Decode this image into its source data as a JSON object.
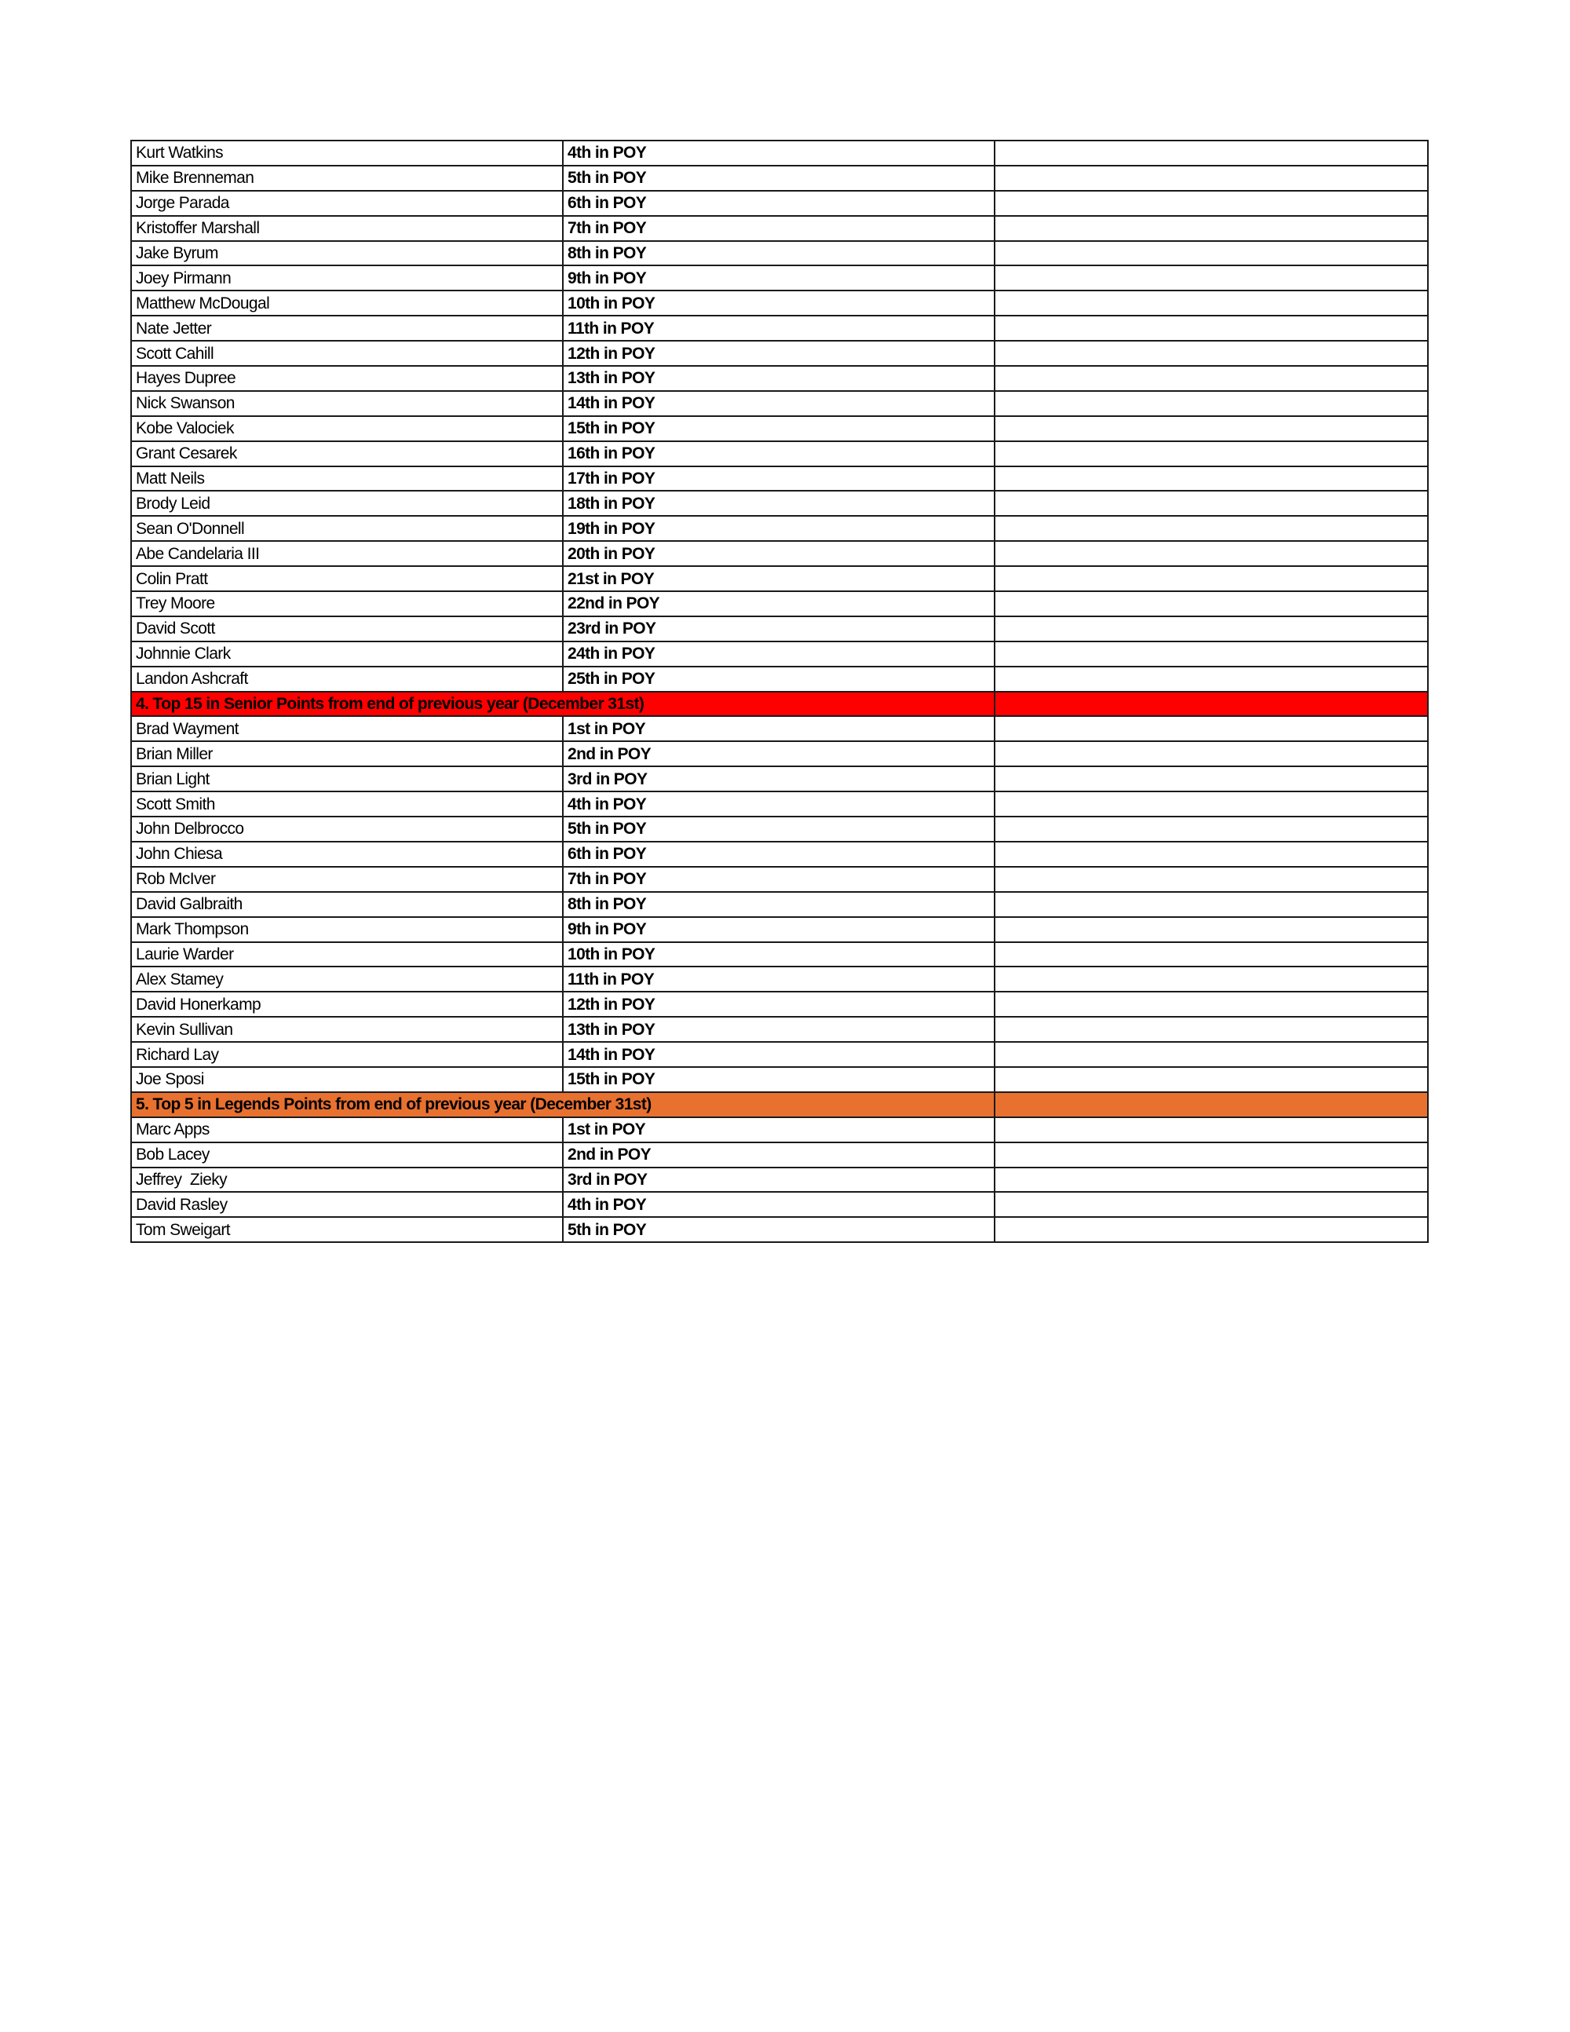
{
  "colors": {
    "section_4": "#ff0000",
    "section_5": "#e87130"
  },
  "rows": [
    {
      "name": "Kurt Watkins",
      "rank": "4th in POY"
    },
    {
      "name": "Mike Brenneman",
      "rank": "5th in POY"
    },
    {
      "name": "Jorge Parada",
      "rank": "6th in POY"
    },
    {
      "name": "Kristoffer Marshall",
      "rank": "7th in POY"
    },
    {
      "name": "Jake Byrum",
      "rank": "8th in POY"
    },
    {
      "name": "Joey Pirmann",
      "rank": "9th in POY"
    },
    {
      "name": "Matthew McDougal",
      "rank": "10th in POY"
    },
    {
      "name": "Nate Jetter",
      "rank": "11th in POY"
    },
    {
      "name": "Scott Cahill",
      "rank": "12th in POY"
    },
    {
      "name": "Hayes Dupree",
      "rank": "13th in POY"
    },
    {
      "name": "Nick Swanson",
      "rank": "14th in POY"
    },
    {
      "name": "Kobe Valociek",
      "rank": "15th in POY"
    },
    {
      "name": "Grant Cesarek",
      "rank": "16th in POY"
    },
    {
      "name": "Matt Neils",
      "rank": "17th in POY"
    },
    {
      "name": "Brody Leid",
      "rank": "18th in POY"
    },
    {
      "name": "Sean O'Donnell",
      "rank": "19th in POY"
    },
    {
      "name": "Abe Candelaria III",
      "rank": "20th in POY"
    },
    {
      "name": "Colin Pratt",
      "rank": "21st in POY"
    },
    {
      "name": "Trey Moore",
      "rank": "22nd in POY"
    },
    {
      "name": "David Scott",
      "rank": "23rd in POY"
    },
    {
      "name": "Johnnie Clark",
      "rank": "24th in POY"
    },
    {
      "name": "Landon Ashcraft",
      "rank": "25th in POY"
    },
    {
      "section": "4. Top 15 in Senior Points from end of previous year (December 31st)",
      "color": "#ff0000"
    },
    {
      "name": "Brad Wayment",
      "rank": "1st in POY"
    },
    {
      "name": "Brian Miller",
      "rank": "2nd in POY"
    },
    {
      "name": "Brian Light",
      "rank": "3rd in POY"
    },
    {
      "name": "Scott Smith",
      "rank": "4th in POY"
    },
    {
      "name": "John Delbrocco",
      "rank": "5th in POY"
    },
    {
      "name": "John Chiesa",
      "rank": "6th in POY"
    },
    {
      "name": "Rob McIver",
      "rank": "7th in POY"
    },
    {
      "name": "David Galbraith",
      "rank": "8th in POY"
    },
    {
      "name": "Mark Thompson",
      "rank": "9th in POY"
    },
    {
      "name": "Laurie Warder",
      "rank": "10th in POY"
    },
    {
      "name": "Alex Stamey",
      "rank": "11th in POY"
    },
    {
      "name": "David Honerkamp",
      "rank": "12th in POY"
    },
    {
      "name": "Kevin Sullivan",
      "rank": "13th in POY"
    },
    {
      "name": "Richard Lay",
      "rank": "14th in POY"
    },
    {
      "name": "Joe Sposi",
      "rank": "15th in POY"
    },
    {
      "section": "5. Top 5 in Legends Points from end of previous year (December 31st)",
      "color": "#e87130"
    },
    {
      "name": "Marc Apps",
      "rank": "1st in POY"
    },
    {
      "name": "Bob Lacey",
      "rank": "2nd in POY"
    },
    {
      "name": "Jeffrey  Zieky",
      "rank": "3rd in POY"
    },
    {
      "name": "David Rasley",
      "rank": "4th in POY"
    },
    {
      "name": "Tom Sweigart",
      "rank": "5th in POY"
    }
  ]
}
